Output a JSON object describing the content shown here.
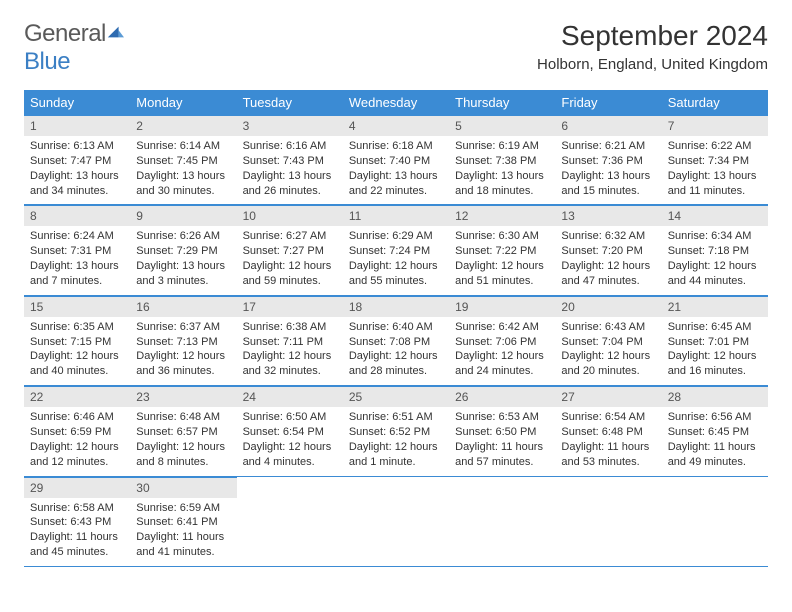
{
  "logo": {
    "text1": "General",
    "text2": "Blue"
  },
  "title": "September 2024",
  "location": "Holborn, England, United Kingdom",
  "colors": {
    "header_bg": "#3b8bd4",
    "header_text": "#ffffff",
    "daynum_bg": "#e8e8e8",
    "border": "#3b8bd4",
    "logo_gray": "#5a5a5a",
    "logo_blue": "#3b7fc4"
  },
  "weekdays": [
    "Sunday",
    "Monday",
    "Tuesday",
    "Wednesday",
    "Thursday",
    "Friday",
    "Saturday"
  ],
  "days": [
    {
      "n": 1,
      "sunrise": "6:13 AM",
      "sunset": "7:47 PM",
      "daylight": "13 hours and 34 minutes."
    },
    {
      "n": 2,
      "sunrise": "6:14 AM",
      "sunset": "7:45 PM",
      "daylight": "13 hours and 30 minutes."
    },
    {
      "n": 3,
      "sunrise": "6:16 AM",
      "sunset": "7:43 PM",
      "daylight": "13 hours and 26 minutes."
    },
    {
      "n": 4,
      "sunrise": "6:18 AM",
      "sunset": "7:40 PM",
      "daylight": "13 hours and 22 minutes."
    },
    {
      "n": 5,
      "sunrise": "6:19 AM",
      "sunset": "7:38 PM",
      "daylight": "13 hours and 18 minutes."
    },
    {
      "n": 6,
      "sunrise": "6:21 AM",
      "sunset": "7:36 PM",
      "daylight": "13 hours and 15 minutes."
    },
    {
      "n": 7,
      "sunrise": "6:22 AM",
      "sunset": "7:34 PM",
      "daylight": "13 hours and 11 minutes."
    },
    {
      "n": 8,
      "sunrise": "6:24 AM",
      "sunset": "7:31 PM",
      "daylight": "13 hours and 7 minutes."
    },
    {
      "n": 9,
      "sunrise": "6:26 AM",
      "sunset": "7:29 PM",
      "daylight": "13 hours and 3 minutes."
    },
    {
      "n": 10,
      "sunrise": "6:27 AM",
      "sunset": "7:27 PM",
      "daylight": "12 hours and 59 minutes."
    },
    {
      "n": 11,
      "sunrise": "6:29 AM",
      "sunset": "7:24 PM",
      "daylight": "12 hours and 55 minutes."
    },
    {
      "n": 12,
      "sunrise": "6:30 AM",
      "sunset": "7:22 PM",
      "daylight": "12 hours and 51 minutes."
    },
    {
      "n": 13,
      "sunrise": "6:32 AM",
      "sunset": "7:20 PM",
      "daylight": "12 hours and 47 minutes."
    },
    {
      "n": 14,
      "sunrise": "6:34 AM",
      "sunset": "7:18 PM",
      "daylight": "12 hours and 44 minutes."
    },
    {
      "n": 15,
      "sunrise": "6:35 AM",
      "sunset": "7:15 PM",
      "daylight": "12 hours and 40 minutes."
    },
    {
      "n": 16,
      "sunrise": "6:37 AM",
      "sunset": "7:13 PM",
      "daylight": "12 hours and 36 minutes."
    },
    {
      "n": 17,
      "sunrise": "6:38 AM",
      "sunset": "7:11 PM",
      "daylight": "12 hours and 32 minutes."
    },
    {
      "n": 18,
      "sunrise": "6:40 AM",
      "sunset": "7:08 PM",
      "daylight": "12 hours and 28 minutes."
    },
    {
      "n": 19,
      "sunrise": "6:42 AM",
      "sunset": "7:06 PM",
      "daylight": "12 hours and 24 minutes."
    },
    {
      "n": 20,
      "sunrise": "6:43 AM",
      "sunset": "7:04 PM",
      "daylight": "12 hours and 20 minutes."
    },
    {
      "n": 21,
      "sunrise": "6:45 AM",
      "sunset": "7:01 PM",
      "daylight": "12 hours and 16 minutes."
    },
    {
      "n": 22,
      "sunrise": "6:46 AM",
      "sunset": "6:59 PM",
      "daylight": "12 hours and 12 minutes."
    },
    {
      "n": 23,
      "sunrise": "6:48 AM",
      "sunset": "6:57 PM",
      "daylight": "12 hours and 8 minutes."
    },
    {
      "n": 24,
      "sunrise": "6:50 AM",
      "sunset": "6:54 PM",
      "daylight": "12 hours and 4 minutes."
    },
    {
      "n": 25,
      "sunrise": "6:51 AM",
      "sunset": "6:52 PM",
      "daylight": "12 hours and 1 minute."
    },
    {
      "n": 26,
      "sunrise": "6:53 AM",
      "sunset": "6:50 PM",
      "daylight": "11 hours and 57 minutes."
    },
    {
      "n": 27,
      "sunrise": "6:54 AM",
      "sunset": "6:48 PM",
      "daylight": "11 hours and 53 minutes."
    },
    {
      "n": 28,
      "sunrise": "6:56 AM",
      "sunset": "6:45 PM",
      "daylight": "11 hours and 49 minutes."
    },
    {
      "n": 29,
      "sunrise": "6:58 AM",
      "sunset": "6:43 PM",
      "daylight": "11 hours and 45 minutes."
    },
    {
      "n": 30,
      "sunrise": "6:59 AM",
      "sunset": "6:41 PM",
      "daylight": "11 hours and 41 minutes."
    }
  ],
  "labels": {
    "sunrise": "Sunrise:",
    "sunset": "Sunset:",
    "daylight": "Daylight:"
  }
}
